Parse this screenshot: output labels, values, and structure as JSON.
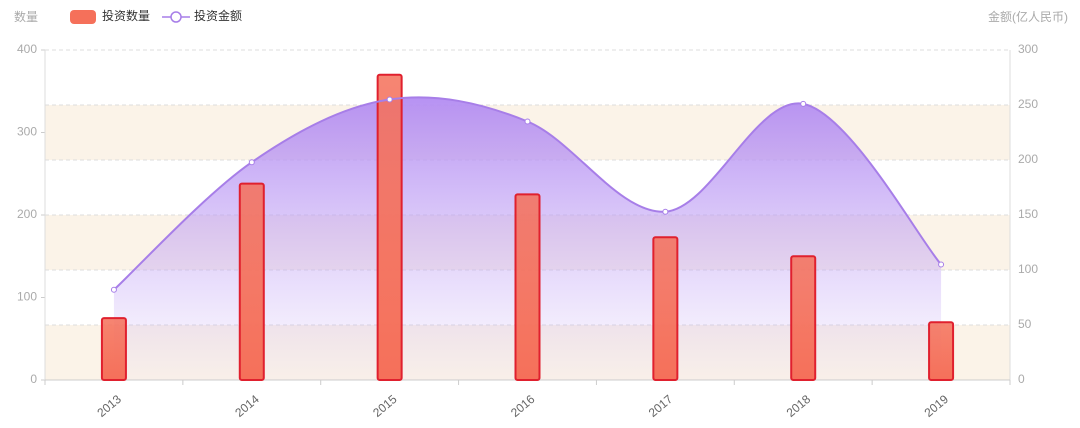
{
  "chart_data": {
    "type": "bar",
    "y_label": "数量",
    "y2_label": "金额(亿人民币)",
    "categories": [
      "2013",
      "2014",
      "2015",
      "2016",
      "2017",
      "2018",
      "2019"
    ],
    "ylim": [
      0,
      400
    ],
    "yticks": [
      0,
      100,
      200,
      300,
      400
    ],
    "y2lim": [
      0,
      300
    ],
    "y2ticks": [
      0,
      50,
      100,
      150,
      200,
      250,
      300
    ],
    "legend": "top-left",
    "grid": true,
    "series": [
      {
        "name": "投资数量",
        "type": "bar",
        "color": "#f5705a",
        "values": [
          75,
          238,
          370,
          225,
          173,
          150,
          70
        ]
      },
      {
        "name": "投资金额",
        "type": "line",
        "axis": "y2",
        "smooth": true,
        "area": true,
        "color": "#a77ee8",
        "values": [
          82,
          198,
          255,
          235,
          153,
          251,
          105
        ]
      }
    ]
  }
}
